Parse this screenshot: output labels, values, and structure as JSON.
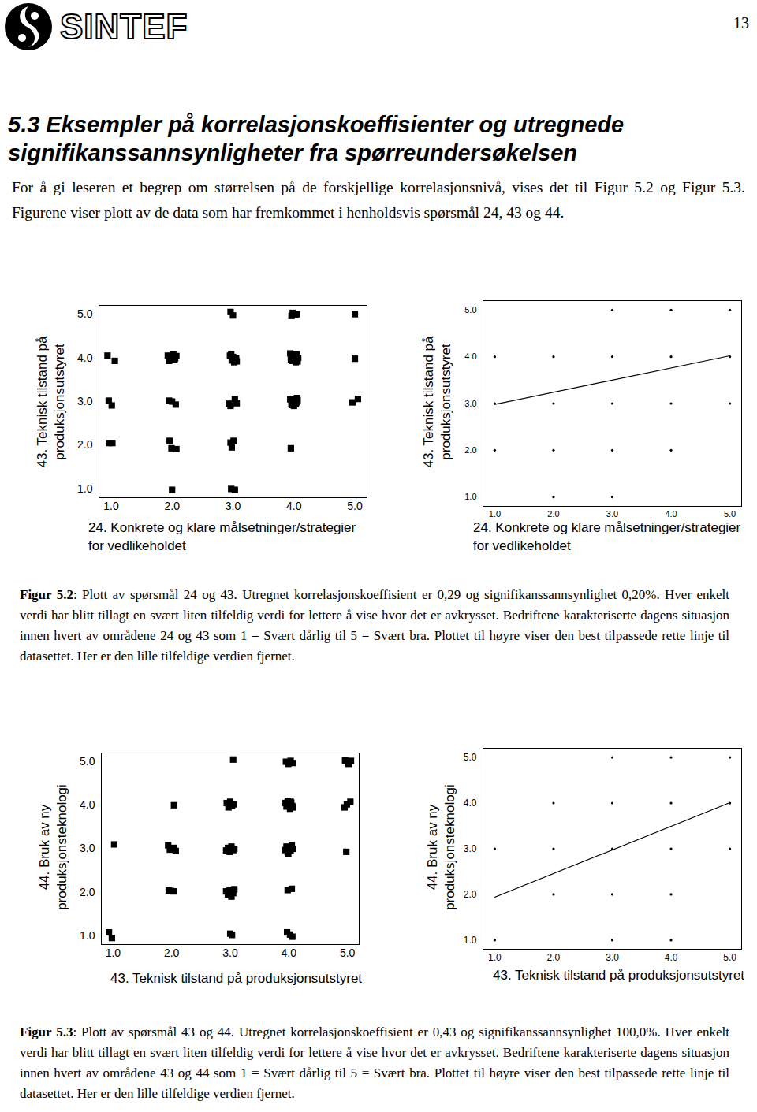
{
  "header": {
    "logo": "SINTEF",
    "page_number": "13"
  },
  "section_title": "5.3 Eksempler på korrelasjonskoeffisienter og utregnede signifikanssannsynligheter fra spørreundersøkelsen",
  "intro": "For å gi leseren et begrep om størrelsen på de forskjellige korrelasjonsnivå, vises det til Figur 5.2 og Figur 5.3. Figurene viser plott av de data som har fremkommet i henholdsvis spørsmål 24, 43 og 44.",
  "chart_data": [
    {
      "type": "scatter",
      "x_label": "24. Konkrete og klare målsetninger/strategier for vedlikeholdet",
      "y_label": "43. Teknisk tilstand på produksjonsutstyret",
      "xlim": [
        0.8,
        5.2
      ],
      "ylim": [
        0.8,
        5.2
      ],
      "xticks": [
        1,
        2,
        3,
        4,
        5
      ],
      "yticks": [
        1,
        2,
        3,
        4,
        5
      ],
      "color": "#000000",
      "series": [
        {
          "type": "scatter",
          "marker": "square",
          "x": [
            0.94,
            1.06,
            0.96,
            1.01,
            0.97,
            1.02,
            1.93,
            1.97,
            2.0,
            2.04,
            2.07,
            1.95,
            2.02,
            2.05,
            1.95,
            2.0,
            2.06,
            1.96,
            1.99,
            2.07,
            2.0,
            2.96,
            3.0,
            2.95,
            2.98,
            3.0,
            3.02,
            3.05,
            2.97,
            3.03,
            3.06,
            2.93,
            2.96,
            3.03,
            3.06,
            2.96,
            2.98,
            3.01,
            2.97,
            3.03,
            3.96,
            3.98,
            4.02,
            4.05,
            3.94,
            3.96,
            3.98,
            4.0,
            4.02,
            4.04,
            4.06,
            3.95,
            4.01,
            4.03,
            3.97,
            4.07,
            3.94,
            3.96,
            3.98,
            4.0,
            4.02,
            4.04,
            4.06,
            3.97,
            4.03,
            4.05,
            3.95,
            5.0,
            5.0,
            4.96,
            5.05
          ],
          "values": [
            4.05,
            3.93,
            3.02,
            2.91,
            2.05,
            2.05,
            4.05,
            3.97,
            4.03,
            3.95,
            4.04,
            3.93,
            4.08,
            3.99,
            3.02,
            3.0,
            2.93,
            2.1,
            1.93,
            1.91,
            0.98,
            5.05,
            4.97,
            4.05,
            3.94,
            4.02,
            3.9,
            4.0,
            4.08,
            3.95,
            3.92,
            2.95,
            2.9,
            3.05,
            2.96,
            2.06,
            1.95,
            2.1,
            1.0,
            0.98,
            4.96,
            5.03,
            4.99,
            5.0,
            4.1,
            4.0,
            3.93,
            4.05,
            3.96,
            4.08,
            3.92,
            3.95,
            4.02,
            3.9,
            4.06,
            4.0,
            3.05,
            2.95,
            3.02,
            2.9,
            3.06,
            2.98,
            3.03,
            2.92,
            2.94,
            3.08,
            1.93,
            5.0,
            3.98,
            2.98,
            3.06
          ]
        }
      ]
    },
    {
      "type": "scatter",
      "x_label": "24. Konkrete og klare målsetninger/strategier for vedlikeholdet",
      "y_label": "43. Teknisk tilstand på produksjonsutstyret",
      "xlim": [
        0.8,
        5.2
      ],
      "ylim": [
        0.8,
        5.2
      ],
      "xticks": [
        1,
        2,
        3,
        4,
        5
      ],
      "yticks": [
        1,
        2,
        3,
        4,
        5
      ],
      "color": "#000000",
      "series": [
        {
          "type": "scatter",
          "marker": "point",
          "x": [
            3,
            4,
            5,
            1,
            2,
            3,
            4,
            5,
            1,
            2,
            3,
            4,
            5,
            1,
            2,
            3,
            4,
            2,
            3
          ],
          "values": [
            5,
            5,
            5,
            4,
            4,
            4,
            4,
            4,
            3,
            3,
            3,
            3,
            3,
            2,
            2,
            2,
            2,
            1,
            1
          ]
        },
        {
          "type": "line",
          "line_style": "solid",
          "x": [
            1,
            5
          ],
          "values": [
            2.98,
            4.02
          ]
        }
      ]
    },
    {
      "type": "scatter",
      "x_label": "43. Teknisk tilstand på produksjonsutstyret",
      "y_label": "44. Bruk av ny produksjonsteknologi",
      "xlim": [
        0.8,
        5.2
      ],
      "ylim": [
        0.8,
        5.2
      ],
      "xticks": [
        1,
        2,
        3,
        4,
        5
      ],
      "yticks": [
        1,
        2,
        3,
        4,
        5
      ],
      "color": "#000000",
      "series": [
        {
          "type": "scatter",
          "marker": "square",
          "x": [
            1.02,
            0.93,
            0.98,
            2.04,
            1.94,
            1.97,
            2.03,
            2.07,
            1.95,
            1.99,
            2.03,
            3.05,
            2.94,
            2.97,
            3.0,
            3.03,
            3.06,
            2.93,
            2.96,
            2.99,
            3.02,
            3.05,
            3.07,
            2.93,
            2.96,
            2.99,
            3.02,
            3.05,
            3.07,
            3.0,
            3.03,
            3.95,
            3.99,
            4.03,
            4.07,
            3.94,
            3.96,
            3.98,
            4.0,
            4.02,
            4.04,
            4.06,
            3.97,
            4.03,
            4.07,
            3.94,
            3.96,
            3.98,
            4.01,
            4.03,
            4.05,
            3.99,
            4.07,
            3.98,
            4.05,
            3.97,
            4.02,
            4.06,
            4.96,
            5.02,
            5.06,
            4.95,
            4.99,
            5.05,
            4.98
          ],
          "values": [
            3.1,
            1.08,
            0.95,
            4.0,
            3.08,
            2.98,
            3.02,
            2.95,
            2.04,
            2.03,
            2.02,
            5.05,
            4.05,
            3.95,
            4.08,
            3.98,
            4.02,
            2.96,
            3.02,
            2.93,
            3.05,
            2.97,
            3.0,
            2.02,
            1.95,
            2.05,
            1.9,
            1.98,
            2.07,
            1.05,
            1.02,
            5.0,
            4.95,
            5.02,
            4.97,
            4.05,
            3.97,
            4.1,
            4.0,
            3.92,
            4.06,
            3.98,
            4.02,
            4.08,
            3.95,
            2.97,
            3.05,
            2.92,
            3.02,
            2.96,
            3.08,
            2.88,
            3.0,
            2.05,
            2.08,
            1.08,
            1.03,
            0.98,
            5.03,
            4.95,
            5.02,
            3.95,
            4.02,
            4.08,
            2.93
          ]
        }
      ]
    },
    {
      "type": "scatter",
      "x_label": "43. Teknisk tilstand på produksjonsutstyret",
      "y_label": "44. Bruk av ny produksjonsteknologi",
      "xlim": [
        0.8,
        5.2
      ],
      "ylim": [
        0.8,
        5.2
      ],
      "xticks": [
        1,
        2,
        3,
        4,
        5
      ],
      "yticks": [
        1,
        2,
        3,
        4,
        5
      ],
      "color": "#000000",
      "series": [
        {
          "type": "scatter",
          "marker": "point",
          "x": [
            3,
            4,
            5,
            2,
            3,
            4,
            5,
            1,
            2,
            3,
            4,
            5,
            2,
            3,
            4,
            1,
            3,
            4
          ],
          "values": [
            5,
            5,
            5,
            4,
            4,
            4,
            4,
            3,
            3,
            3,
            3,
            3,
            2,
            2,
            2,
            1,
            1,
            1
          ]
        },
        {
          "type": "line",
          "line_style": "solid",
          "x": [
            1,
            5
          ],
          "values": [
            1.94,
            4.01
          ]
        }
      ]
    }
  ],
  "captions": [
    {
      "label": "Figur 5.2",
      "text": ": Plott av spørsmål 24 og 43. Utregnet korrelasjonskoeffisient er 0,29 og signifikanssannsynlighet 0,20%. Hver enkelt verdi har blitt tillagt en svært liten tilfeldig verdi for lettere å vise hvor det er avkrysset. Bedriftene karakteriserte dagens situasjon innen hvert av områdene 24 og 43 som 1 = Svært dårlig til 5 = Svært bra. Plottet til høyre viser den best tilpassede rette linje til datasettet. Her er den lille tilfeldige verdien fjernet."
    },
    {
      "label": "Figur 5.3",
      "text": ": Plott av spørsmål 43 og 44. Utregnet korrelasjonskoeffisient er 0,43 og signifikanssannsynlighet 100,0%. Hver enkelt verdi har blitt tillagt en svært liten tilfeldig verdi for lettere å vise hvor det er avkrysset. Bedriftene karakteriserte dagens situasjon innen hvert av områdene 43 og 44 som 1 = Svært dårlig til 5 = Svært bra. Plottet til høyre viser den best tilpassede rette linje til datasettet. Her er den lille tilfeldige verdien fjernet."
    }
  ]
}
